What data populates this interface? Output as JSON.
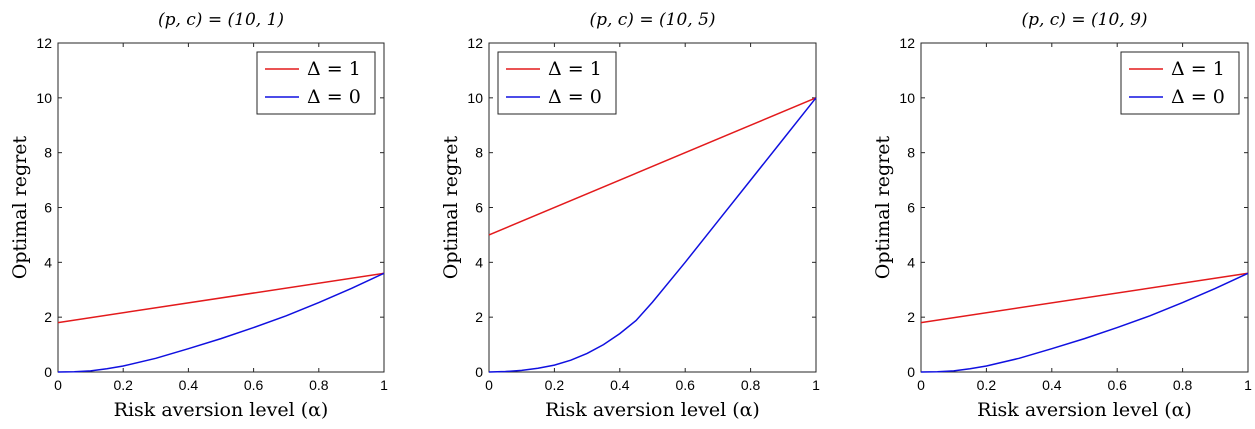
{
  "chart_data": [
    {
      "type": "line",
      "title": "(p, c) = (10, 1)",
      "xlabel": "Risk aversion level (α)",
      "ylabel": "Optimal regret",
      "xlim": [
        0,
        1
      ],
      "ylim": [
        0,
        12
      ],
      "xticks": [
        "0",
        "0.2",
        "0.4",
        "0.6",
        "0.8",
        "1"
      ],
      "yticks": [
        "0",
        "2",
        "4",
        "6",
        "8",
        "10",
        "12"
      ],
      "legend_position": "top-right",
      "grid": false,
      "series": [
        {
          "name": "Δ = 1",
          "color": "#e31a1c",
          "x": [
            0,
            1
          ],
          "y": [
            1.8,
            3.6
          ]
        },
        {
          "name": "Δ = 0",
          "color": "#1010e0",
          "x": [
            0,
            0.05,
            0.1,
            0.15,
            0.2,
            0.3,
            0.4,
            0.5,
            0.6,
            0.7,
            0.8,
            0.9,
            1.0
          ],
          "y": [
            0,
            0.01,
            0.04,
            0.12,
            0.22,
            0.5,
            0.85,
            1.22,
            1.62,
            2.05,
            2.53,
            3.05,
            3.6
          ]
        }
      ]
    },
    {
      "type": "line",
      "title": "(p, c) = (10, 5)",
      "xlabel": "Risk aversion level (α)",
      "ylabel": "Optimal regret",
      "xlim": [
        0,
        1
      ],
      "ylim": [
        0,
        12
      ],
      "xticks": [
        "0",
        "0.2",
        "0.4",
        "0.6",
        "0.8",
        "1"
      ],
      "yticks": [
        "0",
        "2",
        "4",
        "6",
        "8",
        "10",
        "12"
      ],
      "legend_position": "top-left",
      "grid": false,
      "series": [
        {
          "name": "Δ = 1",
          "color": "#e31a1c",
          "x": [
            0,
            1
          ],
          "y": [
            5,
            10
          ]
        },
        {
          "name": "Δ = 0",
          "color": "#1010e0",
          "x": [
            0,
            0.05,
            0.1,
            0.15,
            0.2,
            0.25,
            0.3,
            0.35,
            0.4,
            0.45,
            0.5,
            0.6,
            0.7,
            0.8,
            0.9,
            1.0
          ],
          "y": [
            0,
            0.02,
            0.06,
            0.14,
            0.25,
            0.43,
            0.68,
            1.0,
            1.4,
            1.88,
            2.55,
            4.0,
            5.5,
            7.0,
            8.5,
            10
          ]
        }
      ]
    },
    {
      "type": "line",
      "title": "(p, c) = (10, 9)",
      "xlabel": "Risk aversion level (α)",
      "ylabel": "Optimal regret",
      "xlim": [
        0,
        1
      ],
      "ylim": [
        0,
        12
      ],
      "xticks": [
        "0",
        "0.2",
        "0.4",
        "0.6",
        "0.8",
        "1"
      ],
      "yticks": [
        "0",
        "2",
        "4",
        "6",
        "8",
        "10",
        "12"
      ],
      "legend_position": "top-right",
      "grid": false,
      "series": [
        {
          "name": "Δ = 1",
          "color": "#e31a1c",
          "x": [
            0,
            1
          ],
          "y": [
            1.8,
            3.6
          ]
        },
        {
          "name": "Δ = 0",
          "color": "#1010e0",
          "x": [
            0,
            0.05,
            0.1,
            0.15,
            0.2,
            0.3,
            0.4,
            0.5,
            0.6,
            0.7,
            0.8,
            0.9,
            1.0
          ],
          "y": [
            0,
            0.01,
            0.04,
            0.12,
            0.22,
            0.5,
            0.85,
            1.22,
            1.62,
            2.05,
            2.53,
            3.05,
            3.6
          ]
        }
      ]
    }
  ]
}
